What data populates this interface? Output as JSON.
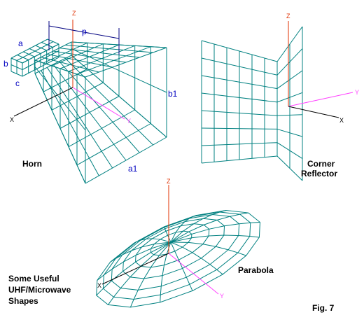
{
  "colors": {
    "wire": "#008080",
    "axis_z": "#e03000",
    "axis_x": "#000000",
    "axis_y": "#ff40ff",
    "dimension": "#000080",
    "label": "#0000c0",
    "caption": "#000000"
  },
  "axes": {
    "z": "Z",
    "y": "Y",
    "x": "X"
  },
  "horn": {
    "caption": "Horn",
    "dims": {
      "a": "a",
      "b": "b",
      "c": "c",
      "p": "p",
      "a1": "a1",
      "b1": "b1"
    }
  },
  "corner_reflector": {
    "caption_line1": "Corner",
    "caption_line2": "Reflector"
  },
  "parabola": {
    "caption": "Parabola"
  },
  "figure_caption": {
    "line1": "Some Useful",
    "line2": "UHF/Microwave",
    "line3": "Shapes"
  },
  "figure_number": "Fig. 7"
}
